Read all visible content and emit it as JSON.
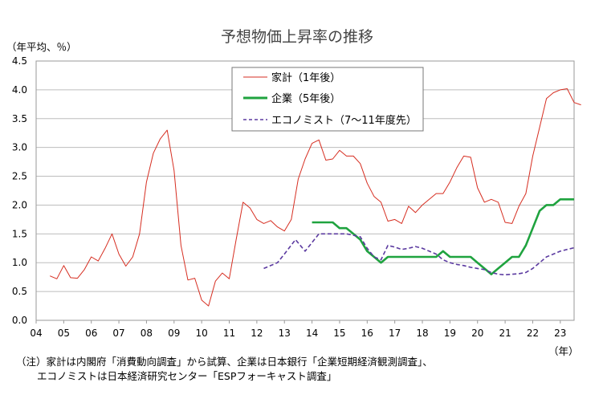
{
  "chart_data": {
    "type": "line",
    "title": "予想物価上昇率の推移",
    "ylabel": "（年平均、％）",
    "xunit": "（年）",
    "ylim": [
      0.0,
      4.5
    ],
    "yticks": [
      "0.0",
      "0.5",
      "1.0",
      "1.5",
      "2.0",
      "2.5",
      "3.0",
      "3.5",
      "4.0",
      "4.5"
    ],
    "xlim": [
      2004,
      2023.5
    ],
    "xticks": [
      {
        "label": "04",
        "x": 2004
      },
      {
        "label": "05",
        "x": 2005
      },
      {
        "label": "06",
        "x": 2006
      },
      {
        "label": "07",
        "x": 2007
      },
      {
        "label": "08",
        "x": 2008
      },
      {
        "label": "09",
        "x": 2009
      },
      {
        "label": "10",
        "x": 2010
      },
      {
        "label": "11",
        "x": 2011
      },
      {
        "label": "12",
        "x": 2012
      },
      {
        "label": "13",
        "x": 2013
      },
      {
        "label": "14",
        "x": 2014
      },
      {
        "label": "15",
        "x": 2015
      },
      {
        "label": "16",
        "x": 2016
      },
      {
        "label": "17",
        "x": 2017
      },
      {
        "label": "18",
        "x": 2018
      },
      {
        "label": "19",
        "x": 2019
      },
      {
        "label": "20",
        "x": 2020
      },
      {
        "label": "21",
        "x": 2021
      },
      {
        "label": "22",
        "x": 2022
      },
      {
        "label": "23",
        "x": 2023
      }
    ],
    "grid": true,
    "legend_position": "top-center",
    "series": [
      {
        "name": "家計（1年後）",
        "color": "#d62d20",
        "style": "solid",
        "points": [
          [
            2004.5,
            0.77
          ],
          [
            2004.75,
            0.72
          ],
          [
            2005.0,
            0.95
          ],
          [
            2005.25,
            0.74
          ],
          [
            2005.5,
            0.73
          ],
          [
            2005.75,
            0.88
          ],
          [
            2006.0,
            1.1
          ],
          [
            2006.25,
            1.03
          ],
          [
            2006.5,
            1.25
          ],
          [
            2006.75,
            1.5
          ],
          [
            2007.0,
            1.15
          ],
          [
            2007.25,
            0.94
          ],
          [
            2007.5,
            1.1
          ],
          [
            2007.75,
            1.5
          ],
          [
            2008.0,
            2.4
          ],
          [
            2008.25,
            2.9
          ],
          [
            2008.5,
            3.15
          ],
          [
            2008.75,
            3.3
          ],
          [
            2009.0,
            2.6
          ],
          [
            2009.25,
            1.3
          ],
          [
            2009.5,
            0.7
          ],
          [
            2009.75,
            0.73
          ],
          [
            2010.0,
            0.35
          ],
          [
            2010.25,
            0.25
          ],
          [
            2010.5,
            0.68
          ],
          [
            2010.75,
            0.82
          ],
          [
            2011.0,
            0.72
          ],
          [
            2011.25,
            1.4
          ],
          [
            2011.5,
            2.05
          ],
          [
            2011.75,
            1.95
          ],
          [
            2012.0,
            1.75
          ],
          [
            2012.25,
            1.68
          ],
          [
            2012.5,
            1.73
          ],
          [
            2012.75,
            1.62
          ],
          [
            2013.0,
            1.55
          ],
          [
            2013.25,
            1.75
          ],
          [
            2013.5,
            2.45
          ],
          [
            2013.75,
            2.8
          ],
          [
            2014.0,
            3.07
          ],
          [
            2014.25,
            3.13
          ],
          [
            2014.5,
            2.78
          ],
          [
            2014.75,
            2.8
          ],
          [
            2015.0,
            2.95
          ],
          [
            2015.25,
            2.85
          ],
          [
            2015.5,
            2.85
          ],
          [
            2015.75,
            2.72
          ],
          [
            2016.0,
            2.38
          ],
          [
            2016.25,
            2.15
          ],
          [
            2016.5,
            2.05
          ],
          [
            2016.75,
            1.72
          ],
          [
            2017.0,
            1.75
          ],
          [
            2017.25,
            1.68
          ],
          [
            2017.5,
            1.98
          ],
          [
            2017.75,
            1.87
          ],
          [
            2018.0,
            2.0
          ],
          [
            2018.25,
            2.1
          ],
          [
            2018.5,
            2.2
          ],
          [
            2018.75,
            2.2
          ],
          [
            2019.0,
            2.4
          ],
          [
            2019.25,
            2.65
          ],
          [
            2019.5,
            2.85
          ],
          [
            2019.75,
            2.83
          ],
          [
            2020.0,
            2.3
          ],
          [
            2020.25,
            2.05
          ],
          [
            2020.5,
            2.1
          ],
          [
            2020.75,
            2.05
          ],
          [
            2021.0,
            1.7
          ],
          [
            2021.25,
            1.68
          ],
          [
            2021.5,
            1.98
          ],
          [
            2021.75,
            2.2
          ],
          [
            2022.0,
            2.85
          ],
          [
            2022.25,
            3.35
          ],
          [
            2022.5,
            3.85
          ],
          [
            2022.75,
            3.95
          ],
          [
            2023.0,
            4.0
          ],
          [
            2023.25,
            4.02
          ],
          [
            2023.5,
            3.78
          ],
          [
            2023.75,
            3.74
          ]
        ]
      },
      {
        "name": "企業（5年後）",
        "color": "#1fa33f",
        "style": "solid",
        "points": [
          [
            2014.0,
            1.7
          ],
          [
            2014.25,
            1.7
          ],
          [
            2014.5,
            1.7
          ],
          [
            2014.75,
            1.7
          ],
          [
            2015.0,
            1.6
          ],
          [
            2015.25,
            1.6
          ],
          [
            2015.5,
            1.5
          ],
          [
            2015.75,
            1.4
          ],
          [
            2016.0,
            1.2
          ],
          [
            2016.25,
            1.1
          ],
          [
            2016.5,
            1.0
          ],
          [
            2016.75,
            1.1
          ],
          [
            2017.0,
            1.1
          ],
          [
            2017.25,
            1.1
          ],
          [
            2017.5,
            1.1
          ],
          [
            2017.75,
            1.1
          ],
          [
            2018.0,
            1.1
          ],
          [
            2018.25,
            1.1
          ],
          [
            2018.5,
            1.1
          ],
          [
            2018.75,
            1.2
          ],
          [
            2019.0,
            1.1
          ],
          [
            2019.25,
            1.1
          ],
          [
            2019.5,
            1.1
          ],
          [
            2019.75,
            1.1
          ],
          [
            2020.0,
            1.0
          ],
          [
            2020.25,
            0.9
          ],
          [
            2020.5,
            0.8
          ],
          [
            2020.75,
            0.9
          ],
          [
            2021.0,
            1.0
          ],
          [
            2021.25,
            1.1
          ],
          [
            2021.5,
            1.1
          ],
          [
            2021.75,
            1.3
          ],
          [
            2022.0,
            1.6
          ],
          [
            2022.25,
            1.9
          ],
          [
            2022.5,
            2.0
          ],
          [
            2022.75,
            2.0
          ],
          [
            2023.0,
            2.1
          ],
          [
            2023.25,
            2.1
          ],
          [
            2023.5,
            2.1
          ]
        ]
      },
      {
        "name": "エコノミスト（7～11年度先）",
        "color": "#5b3aa0",
        "style": "dashed",
        "points": [
          [
            2012.25,
            0.9
          ],
          [
            2012.75,
            1.0
          ],
          [
            2013.0,
            1.15
          ],
          [
            2013.4,
            1.4
          ],
          [
            2013.75,
            1.2
          ],
          [
            2014.0,
            1.35
          ],
          [
            2014.25,
            1.5
          ],
          [
            2014.75,
            1.5
          ],
          [
            2015.25,
            1.5
          ],
          [
            2015.75,
            1.45
          ],
          [
            2016.0,
            1.25
          ],
          [
            2016.25,
            1.1
          ],
          [
            2016.5,
            1.05
          ],
          [
            2016.75,
            1.3
          ],
          [
            2017.0,
            1.27
          ],
          [
            2017.25,
            1.23
          ],
          [
            2017.5,
            1.25
          ],
          [
            2017.75,
            1.28
          ],
          [
            2018.0,
            1.25
          ],
          [
            2018.25,
            1.2
          ],
          [
            2018.5,
            1.15
          ],
          [
            2018.75,
            1.05
          ],
          [
            2019.0,
            1.0
          ],
          [
            2019.25,
            0.97
          ],
          [
            2019.5,
            0.95
          ],
          [
            2019.75,
            0.92
          ],
          [
            2020.0,
            0.9
          ],
          [
            2020.25,
            0.88
          ],
          [
            2020.5,
            0.83
          ],
          [
            2020.75,
            0.8
          ],
          [
            2021.0,
            0.79
          ],
          [
            2021.25,
            0.8
          ],
          [
            2021.5,
            0.81
          ],
          [
            2021.75,
            0.83
          ],
          [
            2022.0,
            0.9
          ],
          [
            2022.25,
            1.0
          ],
          [
            2022.5,
            1.1
          ],
          [
            2022.75,
            1.15
          ],
          [
            2023.0,
            1.2
          ],
          [
            2023.25,
            1.23
          ],
          [
            2023.5,
            1.26
          ]
        ]
      }
    ]
  },
  "notes": [
    "（注）家計は内閣府「消費動向調査」から試算、企業は日本銀行「企業短期経済観測調査」、",
    "エコノミストは日本経済研究センター「ESPフォーキャスト調査」"
  ]
}
